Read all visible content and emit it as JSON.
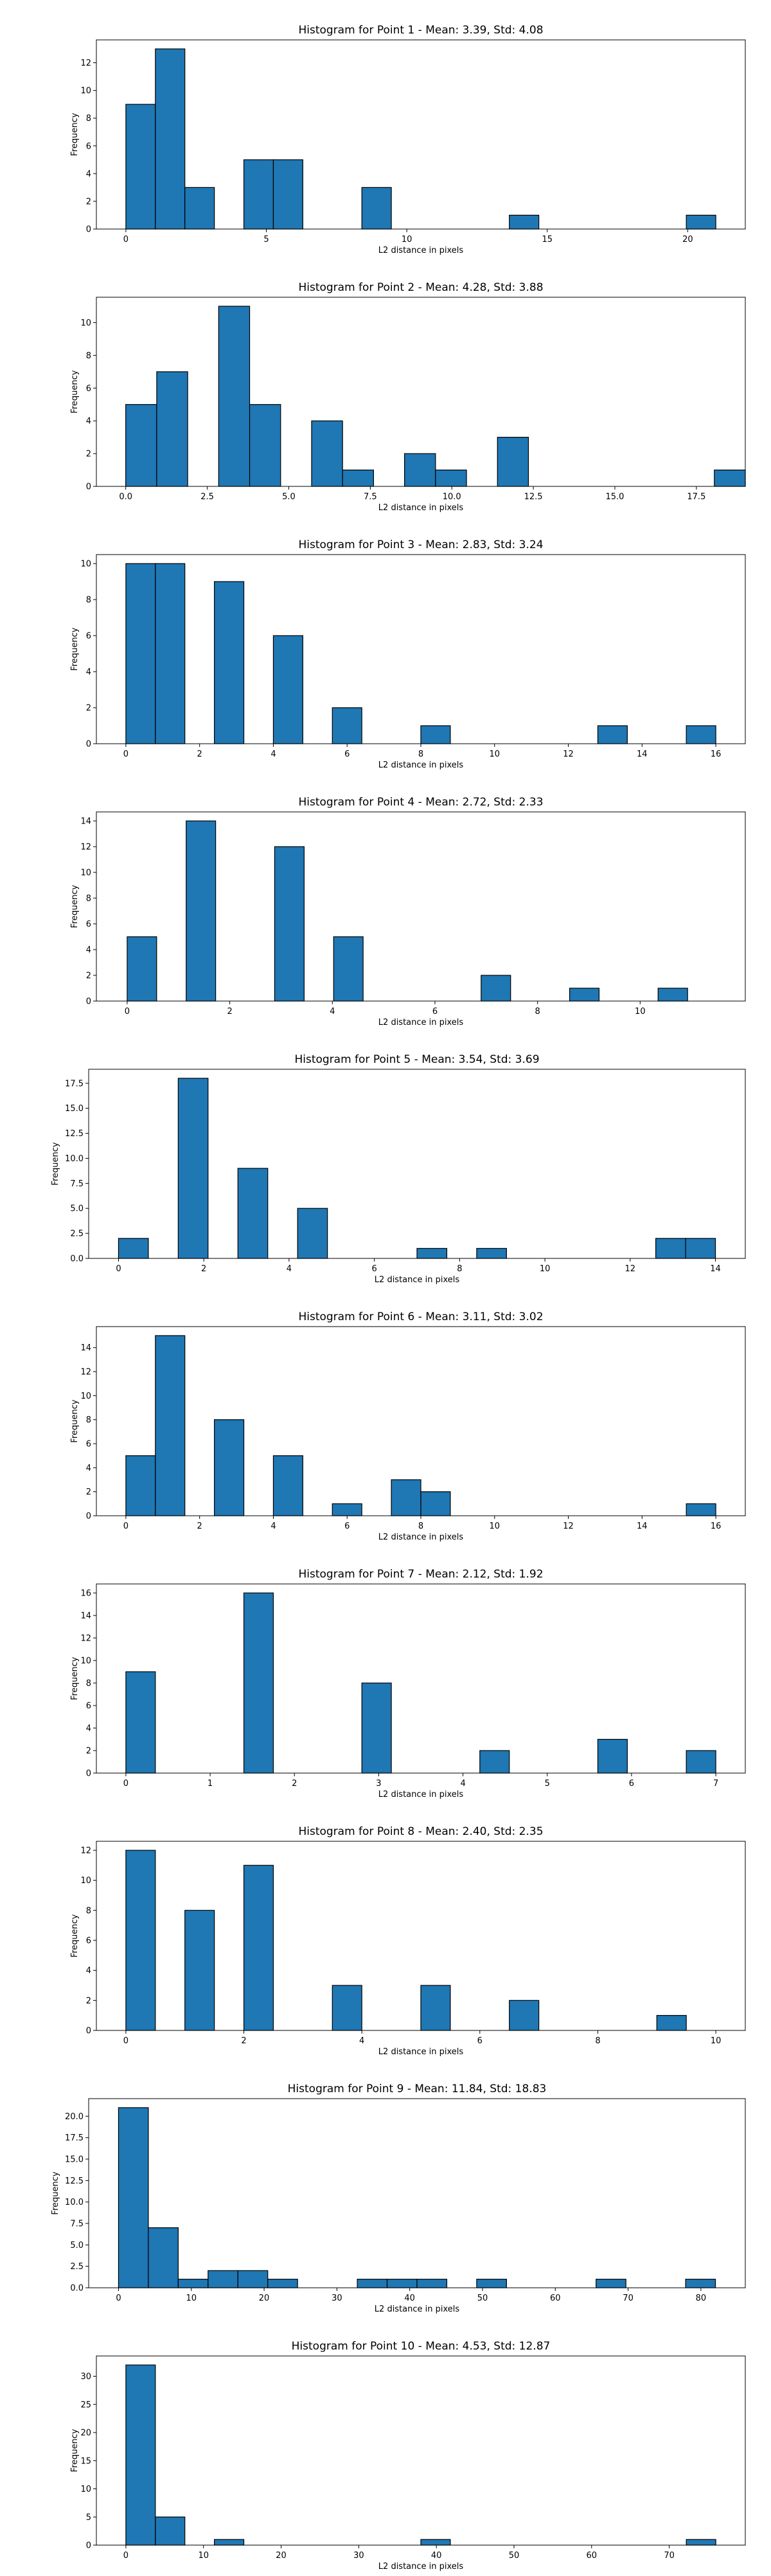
{
  "chart_data": [
    {
      "type": "bar",
      "title": "Histogram for Point 1 - Mean: 3.39, Std: 4.08",
      "xlabel": "L2 distance in pixels",
      "ylabel": "Frequency",
      "xlim": [
        -1.05,
        22.05
      ],
      "ylim": [
        0,
        13.65
      ],
      "xticks": [
        0,
        5,
        10,
        15,
        20
      ],
      "yticks": [
        0,
        2,
        4,
        6,
        8,
        10,
        12
      ],
      "bin_width": 1.05,
      "bins": [
        [
          0.0,
          9
        ],
        [
          1.05,
          13
        ],
        [
          2.1,
          3
        ],
        [
          4.2,
          5
        ],
        [
          5.25,
          5
        ],
        [
          8.4,
          3
        ],
        [
          13.65,
          1
        ],
        [
          19.95,
          1
        ]
      ],
      "bar_color": "#1f77b4",
      "grid": false
    },
    {
      "type": "bar",
      "title": "Histogram for Point 2 - Mean: 4.28, Std: 3.88",
      "xlabel": "L2 distance in pixels",
      "ylabel": "Frequency",
      "xlim": [
        -0.9,
        19.0
      ],
      "ylim": [
        0,
        11.55
      ],
      "xticks": [
        0.0,
        2.5,
        5.0,
        7.5,
        10.0,
        12.5,
        15.0,
        17.5
      ],
      "yticks": [
        0,
        2,
        4,
        6,
        8,
        10
      ],
      "bin_width": 0.95,
      "bins": [
        [
          0.0,
          5
        ],
        [
          0.95,
          7
        ],
        [
          2.85,
          11
        ],
        [
          3.8,
          5
        ],
        [
          5.7,
          4
        ],
        [
          6.65,
          1
        ],
        [
          8.55,
          2
        ],
        [
          9.5,
          1
        ],
        [
          11.4,
          3
        ],
        [
          18.05,
          1
        ]
      ],
      "bar_color": "#1f77b4",
      "grid": false
    },
    {
      "type": "bar",
      "title": "Histogram for Point 3 - Mean: 2.83, Std: 3.24",
      "xlabel": "L2 distance in pixels",
      "ylabel": "Frequency",
      "xlim": [
        -0.8,
        16.8
      ],
      "ylim": [
        0,
        10.5
      ],
      "xticks": [
        0,
        2,
        4,
        6,
        8,
        10,
        12,
        14,
        16
      ],
      "yticks": [
        0,
        2,
        4,
        6,
        8,
        10
      ],
      "bin_width": 0.8,
      "bins": [
        [
          0.0,
          10
        ],
        [
          0.8,
          10
        ],
        [
          2.4,
          9
        ],
        [
          4.0,
          6
        ],
        [
          5.6,
          2
        ],
        [
          8.0,
          1
        ],
        [
          12.8,
          1
        ],
        [
          15.2,
          1
        ]
      ],
      "bar_color": "#1f77b4",
      "grid": false
    },
    {
      "type": "bar",
      "title": "Histogram for Point 4 - Mean: 2.72, Std: 2.33",
      "xlabel": "L2 distance in pixels",
      "ylabel": "Frequency",
      "xlim": [
        -0.6,
        12.05
      ],
      "ylim": [
        0,
        14.7
      ],
      "xticks": [
        0,
        2,
        4,
        6,
        8,
        10
      ],
      "yticks": [
        0,
        2,
        4,
        6,
        8,
        10,
        12,
        14
      ],
      "bin_width": 0.575,
      "bins": [
        [
          0.0,
          5
        ],
        [
          1.15,
          14
        ],
        [
          2.875,
          12
        ],
        [
          4.025,
          5
        ],
        [
          6.9,
          2
        ],
        [
          8.625,
          1
        ],
        [
          10.35,
          1
        ]
      ],
      "bar_color": "#1f77b4",
      "grid": false
    },
    {
      "type": "bar",
      "title": "Histogram for Point 5 - Mean: 3.54, Std: 3.69",
      "xlabel": "L2 distance in pixels",
      "ylabel": "Frequency",
      "xlim": [
        -0.7,
        14.7
      ],
      "ylim": [
        0,
        18.9
      ],
      "xticks": [
        0,
        2,
        4,
        6,
        8,
        10,
        12,
        14
      ],
      "yticks": [
        0.0,
        2.5,
        5.0,
        7.5,
        10.0,
        12.5,
        15.0,
        17.5
      ],
      "bin_width": 0.7,
      "bins": [
        [
          0.0,
          2
        ],
        [
          1.4,
          18
        ],
        [
          2.8,
          9
        ],
        [
          4.2,
          5
        ],
        [
          7.0,
          1
        ],
        [
          8.4,
          1
        ],
        [
          12.6,
          2
        ],
        [
          13.3,
          2
        ]
      ],
      "bar_color": "#1f77b4",
      "grid": false
    },
    {
      "type": "bar",
      "title": "Histogram for Point 6 - Mean: 3.11, Std: 3.02",
      "xlabel": "L2 distance in pixels",
      "ylabel": "Frequency",
      "xlim": [
        -0.8,
        16.8
      ],
      "ylim": [
        0,
        15.75
      ],
      "xticks": [
        0,
        2,
        4,
        6,
        8,
        10,
        12,
        14,
        16
      ],
      "yticks": [
        0,
        2,
        4,
        6,
        8,
        10,
        12,
        14
      ],
      "bin_width": 0.8,
      "bins": [
        [
          0.0,
          5
        ],
        [
          0.8,
          15
        ],
        [
          2.4,
          8
        ],
        [
          4.0,
          5
        ],
        [
          5.6,
          1
        ],
        [
          7.2,
          3
        ],
        [
          8.0,
          2
        ],
        [
          15.2,
          1
        ]
      ],
      "bar_color": "#1f77b4",
      "grid": false
    },
    {
      "type": "bar",
      "title": "Histogram for Point 7 - Mean: 2.12, Std: 1.92",
      "xlabel": "L2 distance in pixels",
      "ylabel": "Frequency",
      "xlim": [
        -0.35,
        7.35
      ],
      "ylim": [
        0,
        16.8
      ],
      "xticks": [
        0,
        1,
        2,
        3,
        4,
        5,
        6,
        7
      ],
      "yticks": [
        0,
        2,
        4,
        6,
        8,
        10,
        12,
        14,
        16
      ],
      "bin_width": 0.35,
      "bins": [
        [
          0.0,
          9
        ],
        [
          1.4,
          16
        ],
        [
          2.8,
          8
        ],
        [
          4.2,
          2
        ],
        [
          5.6,
          3
        ],
        [
          6.65,
          2
        ]
      ],
      "bar_color": "#1f77b4",
      "grid": false
    },
    {
      "type": "bar",
      "title": "Histogram for Point 8 - Mean: 2.40, Std: 2.35",
      "xlabel": "L2 distance in pixels",
      "ylabel": "Frequency",
      "xlim": [
        -0.5,
        10.5
      ],
      "ylim": [
        0,
        12.6
      ],
      "xticks": [
        0,
        2,
        4,
        6,
        8,
        10
      ],
      "yticks": [
        0,
        2,
        4,
        6,
        8,
        10,
        12
      ],
      "bin_width": 0.5,
      "bins": [
        [
          0.0,
          12
        ],
        [
          1.0,
          8
        ],
        [
          2.0,
          11
        ],
        [
          3.5,
          3
        ],
        [
          5.0,
          3
        ],
        [
          6.5,
          2
        ],
        [
          9.0,
          1
        ]
      ],
      "bar_color": "#1f77b4",
      "grid": false
    },
    {
      "type": "bar",
      "title": "Histogram for Point 9 - Mean: 11.84, Std: 18.83",
      "xlabel": "L2 distance in pixels",
      "ylabel": "Frequency",
      "xlim": [
        -4.1,
        86.1
      ],
      "ylim": [
        0,
        22.05
      ],
      "xticks": [
        0,
        10,
        20,
        30,
        40,
        50,
        60,
        70,
        80
      ],
      "yticks": [
        0.0,
        2.5,
        5.0,
        7.5,
        10.0,
        12.5,
        15.0,
        17.5,
        20.0
      ],
      "bin_width": 4.1,
      "bins": [
        [
          0.0,
          21
        ],
        [
          4.1,
          7
        ],
        [
          8.2,
          1
        ],
        [
          12.3,
          2
        ],
        [
          16.4,
          2
        ],
        [
          20.5,
          1
        ],
        [
          32.8,
          1
        ],
        [
          36.9,
          1
        ],
        [
          41.0,
          1
        ],
        [
          49.2,
          1
        ],
        [
          65.6,
          1
        ],
        [
          77.9,
          1
        ]
      ],
      "bar_color": "#1f77b4",
      "grid": false
    },
    {
      "type": "bar",
      "title": "Histogram for Point 10 - Mean: 4.53, Std: 12.87",
      "xlabel": "L2 distance in pixels",
      "ylabel": "Frequency",
      "xlim": [
        -3.8,
        79.8
      ],
      "ylim": [
        0,
        33.6
      ],
      "xticks": [
        0,
        10,
        20,
        30,
        40,
        50,
        60,
        70
      ],
      "yticks": [
        0,
        5,
        10,
        15,
        20,
        25,
        30
      ],
      "bin_width": 3.8,
      "bins": [
        [
          0.0,
          32
        ],
        [
          3.8,
          5
        ],
        [
          11.4,
          1
        ],
        [
          38.0,
          1
        ],
        [
          72.2,
          1
        ]
      ],
      "bar_color": "#1f77b4",
      "grid": false
    }
  ]
}
